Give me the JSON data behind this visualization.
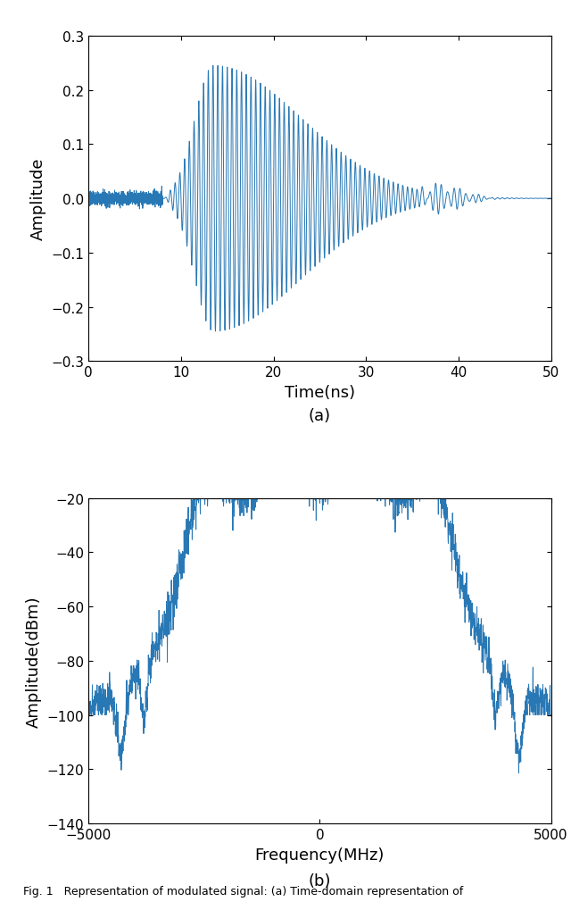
{
  "plot_a": {
    "xlabel": "Time(ns)",
    "ylabel": "Amplitude",
    "xlim": [
      0,
      50
    ],
    "ylim": [
      -0.3,
      0.3
    ],
    "xticks": [
      0,
      10,
      20,
      30,
      40,
      50
    ],
    "yticks": [
      -0.3,
      -0.2,
      -0.1,
      0,
      0.1,
      0.2,
      0.3
    ],
    "line_color": "#2878b5",
    "label": "(a)"
  },
  "plot_b": {
    "xlabel": "Frequency(MHz)",
    "ylabel": "Amplitude(dBm)",
    "xlim": [
      -5000,
      5000
    ],
    "ylim": [
      -140,
      -20
    ],
    "xticks": [
      -5000,
      0,
      5000
    ],
    "yticks": [
      -140,
      -120,
      -100,
      -80,
      -60,
      -40,
      -20
    ],
    "line_color": "#2878b5",
    "label": "(b)"
  },
  "caption": "Fig. 1   Representation of modulated signal: (a) Time-domain representation of",
  "background_color": "#ffffff",
  "line_width": 0.7,
  "font_size": 11,
  "label_font_size": 13
}
